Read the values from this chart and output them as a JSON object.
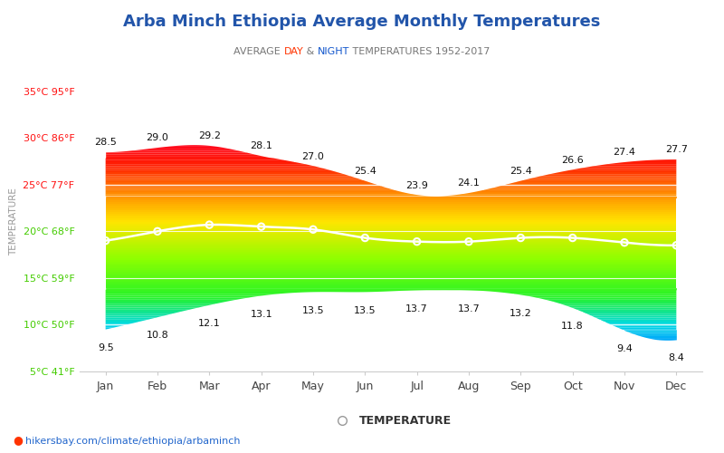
{
  "title": "Arba Minch Ethiopia Average Monthly Temperatures",
  "subtitle_parts": [
    [
      "AVERAGE ",
      "#777777"
    ],
    [
      "DAY",
      "#ff3300"
    ],
    [
      " & ",
      "#777777"
    ],
    [
      "NIGHT",
      "#1155cc"
    ],
    [
      " TEMPERATURES 1952-2017",
      "#777777"
    ]
  ],
  "ylabel": "TEMPERATURE",
  "months": [
    "Jan",
    "Feb",
    "Mar",
    "Apr",
    "May",
    "Jun",
    "Jul",
    "Aug",
    "Sep",
    "Oct",
    "Nov",
    "Dec"
  ],
  "high_temps": [
    28.5,
    29.0,
    29.2,
    28.1,
    27.0,
    25.4,
    23.9,
    24.1,
    25.4,
    26.6,
    27.4,
    27.7
  ],
  "low_temps": [
    9.5,
    10.8,
    12.1,
    13.1,
    13.5,
    13.5,
    13.7,
    13.7,
    13.2,
    11.8,
    9.4,
    8.4
  ],
  "night_temps": [
    19.0,
    20.0,
    20.7,
    20.5,
    20.2,
    19.3,
    18.9,
    18.9,
    19.3,
    19.3,
    18.8,
    18.5
  ],
  "ylim_min": 5,
  "ylim_max": 37,
  "yticks": [
    5,
    10,
    15,
    20,
    25,
    30,
    35
  ],
  "ytick_labels": [
    "5°C 41°F",
    "10°C 50°F",
    "15°C 59°F",
    "20°C 68°F",
    "25°C 77°F",
    "30°C 86°F",
    "35°C 95°F"
  ],
  "ytick_colors": [
    "#44cc00",
    "#44cc00",
    "#44cc00",
    "#44cc00",
    "#ff1111",
    "#ff1111",
    "#ff1111"
  ],
  "title_color": "#2255aa",
  "watermark": "hikersbay.com/climate/ethiopia/arbaminch",
  "legend_label": "TEMPERATURE",
  "temp_color_stops": [
    [
      5,
      [
        0.0,
        0.2,
        1.0
      ]
    ],
    [
      8,
      [
        0.0,
        0.6,
        1.0
      ]
    ],
    [
      10,
      [
        0.0,
        0.85,
        0.9
      ]
    ],
    [
      13,
      [
        0.15,
        0.95,
        0.15
      ]
    ],
    [
      17,
      [
        0.55,
        1.0,
        0.0
      ]
    ],
    [
      21,
      [
        1.0,
        0.9,
        0.0
      ]
    ],
    [
      24,
      [
        1.0,
        0.55,
        0.0
      ]
    ],
    [
      27,
      [
        1.0,
        0.12,
        0.0
      ]
    ],
    [
      30,
      [
        1.0,
        0.0,
        0.15
      ]
    ],
    [
      35,
      [
        0.9,
        0.0,
        0.3
      ]
    ]
  ]
}
